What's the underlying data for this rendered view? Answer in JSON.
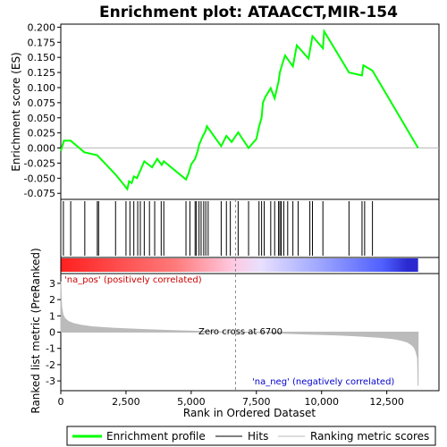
{
  "chart_data": [
    {
      "type": "line",
      "title": "Enrichment plot: ATAACCT,MIR-154",
      "ylabel": "Enrichment score (ES)",
      "ylim": [
        -0.085,
        0.205
      ],
      "xlim": [
        0,
        14500
      ],
      "yticks": [
        "0.200",
        "0.175",
        "0.150",
        "0.125",
        "0.100",
        "0.075",
        "0.050",
        "0.025",
        "0.000",
        "-0.025",
        "-0.050",
        "-0.075"
      ],
      "ytick_values": [
        0.2,
        0.175,
        0.15,
        0.125,
        0.1,
        0.075,
        0.05,
        0.025,
        0,
        -0.025,
        -0.05,
        -0.075
      ],
      "grid": false,
      "series": [
        {
          "name": "Enrichment profile",
          "color": "#00ff00",
          "x": [
            0,
            120,
            380,
            900,
            1400,
            2100,
            2550,
            2620,
            2720,
            2800,
            2920,
            3050,
            3200,
            3500,
            3700,
            3870,
            3950,
            4800,
            4900,
            5000,
            5150,
            5250,
            5300,
            5400,
            5450,
            5550,
            5600,
            6150,
            6350,
            6550,
            6800,
            7200,
            7500,
            7600,
            7700,
            7750,
            7850,
            8050,
            8200,
            8350,
            8400,
            8500,
            8600,
            8900,
            9050,
            9500,
            9650,
            10050,
            10100,
            11050,
            11550,
            11600,
            11950,
            13700
          ],
          "y": [
            -0.005,
            0.012,
            0.012,
            -0.007,
            -0.012,
            -0.044,
            -0.068,
            -0.055,
            -0.058,
            -0.047,
            -0.05,
            -0.037,
            -0.022,
            -0.032,
            -0.018,
            -0.028,
            -0.022,
            -0.052,
            -0.042,
            -0.027,
            -0.018,
            -0.005,
            0.005,
            0.015,
            0.02,
            0.028,
            0.036,
            0.003,
            0.02,
            0.01,
            0.026,
            0.0,
            0.015,
            0.035,
            0.05,
            0.075,
            0.085,
            0.099,
            0.082,
            0.11,
            0.125,
            0.14,
            0.153,
            0.135,
            0.17,
            0.148,
            0.185,
            0.165,
            0.193,
            0.125,
            0.12,
            0.137,
            0.128,
            0.0
          ]
        }
      ],
      "hits_x": [
        100,
        380,
        920,
        1400,
        1450,
        2100,
        2500,
        2650,
        2800,
        2950,
        3050,
        3200,
        3400,
        3600,
        3850,
        3950,
        4800,
        4950,
        5150,
        5200,
        5300,
        5380,
        5480,
        5560,
        5650,
        6150,
        6350,
        6500,
        6800,
        7200,
        7600,
        7700,
        7800,
        8050,
        8200,
        8350,
        8400,
        8450,
        8550,
        8700,
        8900,
        9100,
        9550,
        9650,
        10050,
        11050,
        11550,
        11650,
        11950
      ],
      "hits_label": "Hits",
      "bar_color_scale": "red-to-blue",
      "bar_label_pos": "'na_pos' (positively correlated)",
      "bar_label_neg": "'na_neg' (negatively correlated)"
    },
    {
      "type": "area",
      "xlabel": "Rank in Ordered Dataset",
      "ylabel": "Ranked list metric (PreRanked)",
      "ylim": [
        -3.6,
        3.6
      ],
      "xlim": [
        0,
        14500
      ],
      "yticks": [
        "3",
        "2",
        "1",
        "0",
        "-1",
        "-2",
        "-3"
      ],
      "ytick_values": [
        3,
        2,
        1,
        0,
        -1,
        -2,
        -3
      ],
      "xticks": [
        "0",
        "2,500",
        "5,000",
        "7,500",
        "10,000",
        "12,500"
      ],
      "xtick_values": [
        0,
        2500,
        5000,
        7500,
        10000,
        12500
      ],
      "zero_cross_label": "Zero cross at 6700",
      "zero_cross_x": 6700,
      "series": [
        {
          "name": "Ranking metric scores",
          "color": "#bbbbbb",
          "x": [
            0,
            30,
            80,
            150,
            300,
            500,
            800,
            1200,
            2000,
            3000,
            4000,
            5000,
            6000,
            6700,
            7500,
            8500,
            9500,
            10500,
            11500,
            12300,
            12800,
            13100,
            13300,
            13450,
            13550,
            13620,
            13680,
            13700
          ],
          "y": [
            3.1,
            1.6,
            1.1,
            0.85,
            0.65,
            0.52,
            0.42,
            0.33,
            0.24,
            0.17,
            0.11,
            0.06,
            0.02,
            0.0,
            -0.03,
            -0.07,
            -0.12,
            -0.17,
            -0.25,
            -0.33,
            -0.42,
            -0.52,
            -0.62,
            -0.78,
            -0.95,
            -1.2,
            -1.6,
            -3.3
          ]
        }
      ]
    }
  ],
  "legend": {
    "items": [
      {
        "label": "Enrichment profile",
        "color": "#00ff00",
        "style": "thick-line"
      },
      {
        "label": "Hits",
        "color": "#000000",
        "style": "thin-line"
      },
      {
        "label": "Ranking metric scores",
        "color": "#bbbbbb",
        "style": "thin-line"
      }
    ]
  }
}
